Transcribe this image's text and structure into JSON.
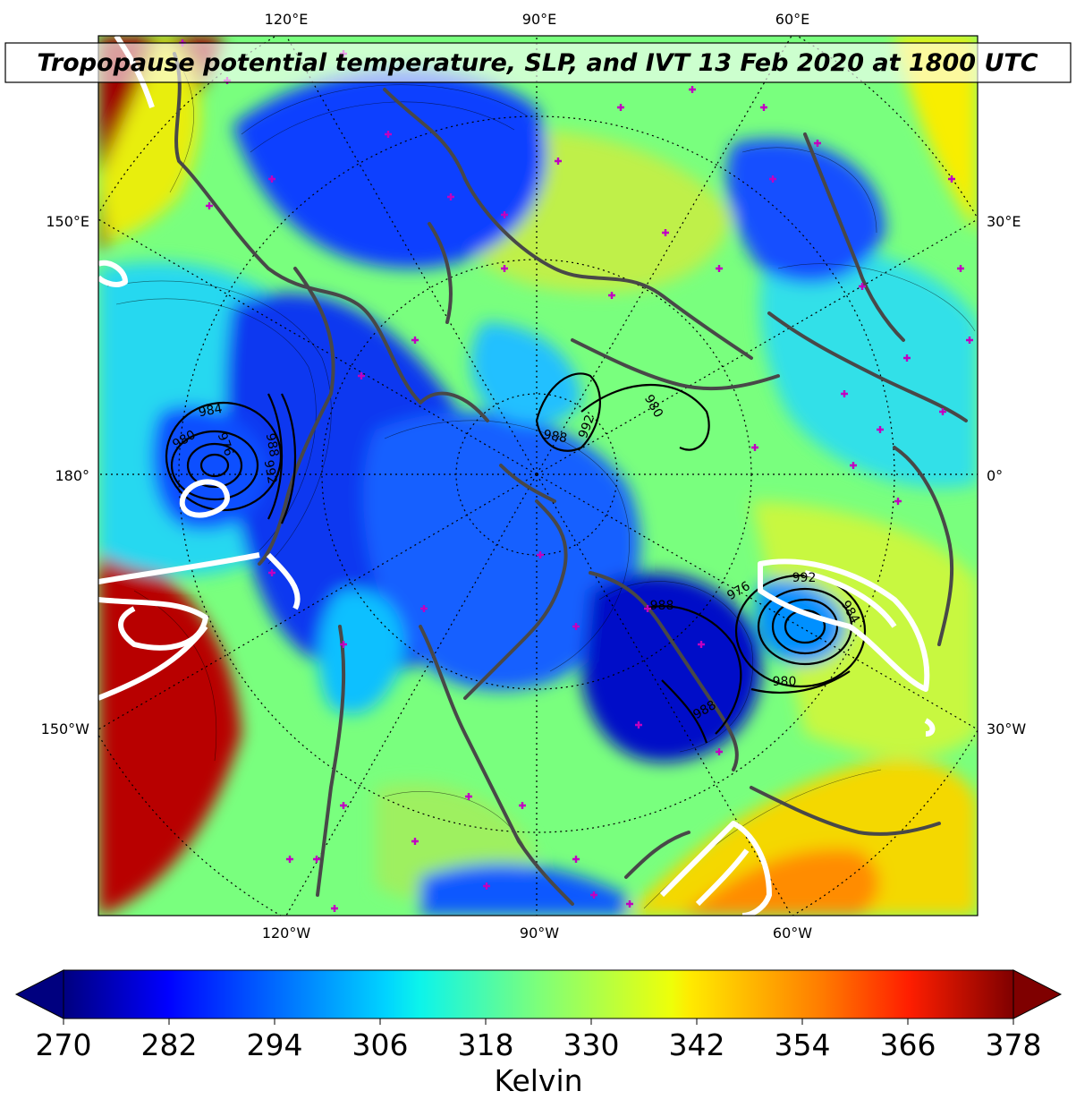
{
  "title": "Tropopause potential temperature, SLP, and IVT 13 Feb 2020 at 1800 UTC",
  "longitude_labels": {
    "top": [
      "120°E",
      "90°E",
      "60°E"
    ],
    "bottom": [
      "120°W",
      "90°W",
      "60°W"
    ],
    "left": [
      "150°E",
      "180°",
      "150°W"
    ],
    "right": [
      "30°E",
      "0°",
      "30°W"
    ]
  },
  "colorbar": {
    "units": "Kelvin",
    "min": 270,
    "max": 378,
    "ticks": [
      "270",
      "282",
      "294",
      "306",
      "318",
      "330",
      "342",
      "354",
      "366",
      "378"
    ],
    "colormap": "jet"
  },
  "slp_contour_labels": [
    "984",
    "980",
    "976",
    "988",
    "992",
    "988",
    "992",
    "980",
    "988",
    "976",
    "992",
    "984",
    "980",
    "988"
  ],
  "colors": {
    "coastline": "#484848",
    "ivt_contour": "#ffffff",
    "slp_contour": "#000000",
    "station_marker": "#c000c0",
    "gridline": "#000000"
  }
}
